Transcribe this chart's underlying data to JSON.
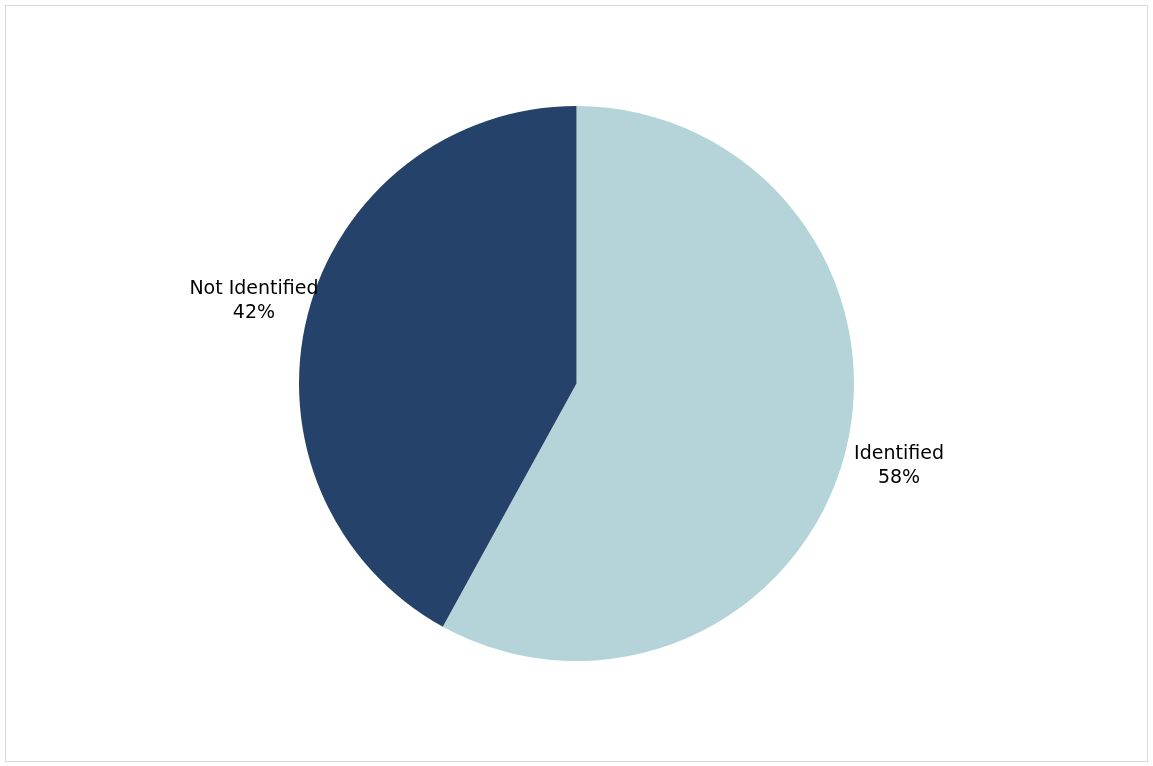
{
  "chart_data": {
    "type": "pie",
    "categories": [
      "Identified",
      "Not Identified"
    ],
    "values": [
      58,
      42
    ],
    "colors": [
      "#b5d4da",
      "#25436a"
    ],
    "value_labels": [
      "58%",
      "42%"
    ],
    "legend": false
  }
}
